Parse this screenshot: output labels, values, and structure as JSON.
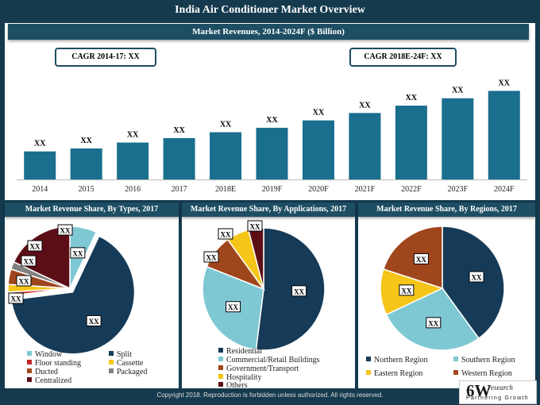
{
  "title": "India Air Conditioner Market Overview",
  "footer": "Copyright 2018. Reproduction is forbidden unless authorized. All rights reserved.",
  "logo": {
    "main": "6W",
    "super": "research",
    "tagline": "Partnering Growth"
  },
  "colors": {
    "background": "#153a4e",
    "header": "#1d4e63",
    "bar": "#1a6e8e",
    "pie": [
      "#7ec8d3",
      "#163b58",
      "#c62828",
      "#f5c518",
      "#a0461c",
      "#808080",
      "#5c0e16"
    ]
  },
  "revenue": {
    "header": "Market Revenues, 2014-2024F ($ Billion)",
    "cagr_left": "CAGR 2014-17: XX",
    "cagr_right": "CAGR 2018E-24F: XX"
  },
  "types": {
    "header": "Market Revenue Share, By Types, 2017",
    "legend": [
      "Window",
      "Split",
      "Floor standing",
      "Cassette",
      "Ducted",
      "Packaged",
      "Centralized"
    ]
  },
  "applications": {
    "header": "Market Revenue Share, By Applications, 2017",
    "legend": [
      "Residential",
      "Commercial/Retail Buildings",
      "Government/Transport",
      "Hospitality",
      "Others"
    ]
  },
  "regions": {
    "header": "Market Revenue Share, By Regions, 2017",
    "legend": [
      "Northern Region",
      "Southern Region",
      "Eastern Region",
      "Western Region"
    ]
  },
  "chart_data": [
    {
      "type": "bar",
      "title": "Market Revenues, 2014-2024F ($ Billion)",
      "categories": [
        "2014",
        "2015",
        "2016",
        "2017",
        "2018E",
        "2019F",
        "2020F",
        "2021F",
        "2022F",
        "2023F",
        "2024F"
      ],
      "values": [
        19,
        21,
        25,
        28,
        32,
        35,
        40,
        45,
        50,
        55,
        60
      ],
      "data_labels": [
        "XX",
        "XX",
        "XX",
        "XX",
        "XX",
        "XX",
        "XX",
        "XX",
        "XX",
        "XX",
        "XX"
      ],
      "ylim": [
        0,
        64
      ],
      "xlabel": "",
      "ylabel": ""
    },
    {
      "type": "pie",
      "title": "Market Revenue Share, By Types, 2017",
      "categories": [
        "Window",
        "Split",
        "Floor standing",
        "Cassette",
        "Ducted",
        "Packaged",
        "Centralized"
      ],
      "values": [
        7,
        66,
        1,
        2,
        4,
        2,
        18
      ],
      "data_labels": [
        "XX",
        "XX",
        "XX",
        "XX",
        "XX",
        "XX",
        "XX"
      ],
      "exploded": [
        0,
        1,
        0,
        0,
        0,
        0,
        0
      ],
      "start_angle_deg": 0,
      "colors": [
        "#7ec8d3",
        "#163b58",
        "#c62828",
        "#f5c518",
        "#a0461c",
        "#808080",
        "#5c0e16"
      ]
    },
    {
      "type": "pie",
      "title": "Market Revenue Share, By Applications, 2017",
      "categories": [
        "Residential",
        "Commercial/Retail Buildings",
        "Government/Transport",
        "Hospitality",
        "Others"
      ],
      "values": [
        52,
        29,
        9,
        6,
        4
      ],
      "data_labels": [
        "XX",
        "XX",
        "XX",
        "XX",
        "XX"
      ],
      "start_angle_deg": 0,
      "colors": [
        "#163b58",
        "#7ec8d3",
        "#a0461c",
        "#f5c518",
        "#5c0e16"
      ]
    },
    {
      "type": "pie",
      "title": "Market Revenue Share, By Regions, 2017",
      "categories": [
        "Northern Region",
        "Southern Region",
        "Eastern Region",
        "Western Region"
      ],
      "values": [
        40,
        28,
        12,
        20
      ],
      "data_labels": [
        "XX",
        "XX",
        "XX",
        "XX"
      ],
      "start_angle_deg": 0,
      "colors": [
        "#163b58",
        "#7ec8d3",
        "#f5c518",
        "#a0461c"
      ]
    }
  ]
}
